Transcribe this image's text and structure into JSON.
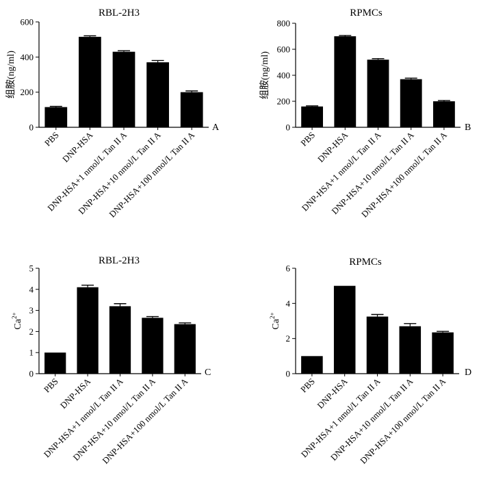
{
  "chart_data": [
    {
      "type": "bar",
      "title": "RBL-2H3",
      "panel_label": "A",
      "ylabel": "组胺(ng/ml)",
      "ylim": [
        0,
        600
      ],
      "yticks": [
        "0",
        "200",
        "400",
        "600"
      ],
      "categories": [
        "PBS",
        "DNP-HSA",
        "DNP-HSA+1 nmol/L Tan II A",
        "DNP-HSA+10 nmol/L Tan II A",
        "DNP-HSA+100 nmol/L Tan II A"
      ],
      "values": [
        115,
        515,
        430,
        370,
        200
      ],
      "errors": [
        4,
        6,
        6,
        10,
        7
      ],
      "grid": false,
      "bar_color": "#000000"
    },
    {
      "type": "bar",
      "title": "RPMCs",
      "panel_label": "B",
      "ylabel": "组胺(ng/ml)",
      "ylim": [
        0,
        800
      ],
      "yticks": [
        "0",
        "200",
        "400",
        "600",
        "800"
      ],
      "categories": [
        "PBS",
        "DNP-HSA",
        "DNP-HSA+1 nmol/L Tan II A",
        "DNP-HSA+10 nmol/L Tan II A",
        "DNP-HSA+100 nmol/L Tan II A"
      ],
      "values": [
        160,
        700,
        520,
        370,
        200
      ],
      "errors": [
        5,
        6,
        8,
        8,
        6
      ],
      "grid": false,
      "bar_color": "#000000"
    },
    {
      "type": "bar",
      "title": "RBL-2H3",
      "panel_label": "C",
      "ylabel": "Ca2+",
      "ylim": [
        0,
        5
      ],
      "yticks": [
        "0",
        "1",
        "2",
        "3",
        "4",
        "5"
      ],
      "categories": [
        "PBS",
        "DNP-HSA",
        "DNP-HSA+1 nmol/L Tan II A",
        "DNP-HSA+10 nmol/L Tan II A",
        "DNP-HSA+100 nmol/L Tan II A"
      ],
      "values": [
        1.0,
        4.1,
        3.2,
        2.65,
        2.35
      ],
      "errors": [
        0,
        0.1,
        0.12,
        0.06,
        0.06
      ],
      "grid": false,
      "bar_color": "#000000"
    },
    {
      "type": "bar",
      "title": "RPMCs",
      "panel_label": "D",
      "ylabel": "Ca2+",
      "ylim": [
        0,
        6
      ],
      "yticks": [
        "0",
        "2",
        "4",
        "6"
      ],
      "categories": [
        "PBS",
        "DNP-HSA",
        "DNP-HSA+1 nmol/L Tan II A",
        "DNP-HSA+10 nmol/L Tan II A",
        "DNP-HSA+100 nmol/L Tan II A"
      ],
      "values": [
        1.0,
        5.0,
        3.25,
        2.7,
        2.35
      ],
      "errors": [
        0,
        0,
        0.12,
        0.15,
        0.06
      ],
      "grid": false,
      "bar_color": "#000000"
    }
  ]
}
